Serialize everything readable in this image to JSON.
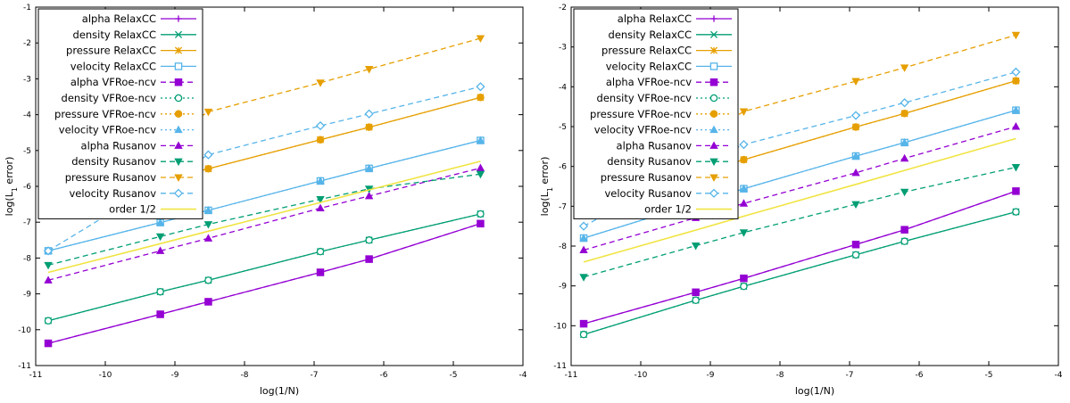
{
  "chart_data": [
    {
      "type": "line",
      "xlabel": "log(1/N)",
      "ylabel": "log(L1 error)",
      "ylabel_main": "log(L",
      "ylabel_sub": "1",
      "ylabel_tail": " error)",
      "xlim": [
        -11,
        -4
      ],
      "ylim": [
        -11,
        -1
      ],
      "xticks": [
        -11,
        -10,
        -9,
        -8,
        -7,
        -6,
        -5,
        -4
      ],
      "yticks": [
        -11,
        -10,
        -9,
        -8,
        -7,
        -6,
        -5,
        -4,
        -3,
        -2,
        -1
      ],
      "legend_position": "top-left",
      "x": [
        -10.82,
        -9.21,
        -8.52,
        -6.91,
        -6.21,
        -4.61
      ],
      "series": [
        {
          "name": "alpha RelaxCC",
          "color": "#9400d3",
          "dash": "solid",
          "marker": "plus",
          "y": [
            -10.38,
            -9.57,
            -9.22,
            -8.4,
            -8.03,
            -7.04
          ]
        },
        {
          "name": "density RelaxCC",
          "color": "#009e73",
          "dash": "solid",
          "marker": "cross",
          "y": [
            -9.75,
            -8.94,
            -8.62,
            -7.82,
            -7.5,
            -6.77
          ]
        },
        {
          "name": "pressure RelaxCC",
          "color": "#e69f00",
          "dash": "solid",
          "marker": "star",
          "y": [
            -6.67,
            -5.85,
            -5.51,
            -4.7,
            -4.35,
            -3.52
          ]
        },
        {
          "name": "velocity RelaxCC",
          "color": "#56b4e9",
          "dash": "solid",
          "marker": "square-open",
          "y": [
            -7.8,
            -7.01,
            -6.67,
            -5.85,
            -5.5,
            -4.72
          ]
        },
        {
          "name": "alpha VFRoe-ncv",
          "color": "#9400d3",
          "dash": "dashed",
          "marker": "square-filled",
          "y": [
            -10.38,
            -9.57,
            -9.22,
            -8.4,
            -8.03,
            -7.04
          ]
        },
        {
          "name": "density VFRoe-ncv",
          "color": "#009e73",
          "dash": "dotted",
          "marker": "circle-open",
          "y": [
            -9.75,
            -8.94,
            -8.62,
            -7.82,
            -7.5,
            -6.77
          ]
        },
        {
          "name": "pressure VFRoe-ncv",
          "color": "#e69f00",
          "dash": "dotted",
          "marker": "circle-filled",
          "y": [
            -6.67,
            -5.85,
            -5.51,
            -4.7,
            -4.35,
            -3.52
          ]
        },
        {
          "name": "velocity VFRoe-ncv",
          "color": "#56b4e9",
          "dash": "dotted",
          "marker": "triangle-up",
          "y": [
            -7.8,
            -7.01,
            -6.67,
            -5.85,
            -5.5,
            -4.72
          ]
        },
        {
          "name": "alpha Rusanov",
          "color": "#9400d3",
          "dash": "dashed",
          "marker": "triangle-up",
          "y": [
            -8.62,
            -7.8,
            -7.45,
            -6.61,
            -6.27,
            -5.49
          ]
        },
        {
          "name": "density Rusanov",
          "color": "#009e73",
          "dash": "dashed",
          "marker": "triangle-down",
          "y": [
            -8.2,
            -7.4,
            -7.06,
            -6.36,
            -6.07,
            -5.66
          ]
        },
        {
          "name": "pressure Rusanov",
          "color": "#e69f00",
          "dash": "dashed",
          "marker": "triangle-down",
          "y": [
            -6.65,
            -4.75,
            -3.92,
            -3.11,
            -2.73,
            -1.87
          ]
        },
        {
          "name": "velocity Rusanov",
          "color": "#56b4e9",
          "dash": "dashed",
          "marker": "diamond-open",
          "y": [
            -7.8,
            -5.9,
            -5.12,
            -4.31,
            -3.98,
            -3.22
          ]
        },
        {
          "name": "order 1/2",
          "color": "#f0e442",
          "dash": "solid",
          "marker": "none",
          "y": [
            -8.4,
            -7.6,
            -7.25,
            -6.45,
            -6.1,
            -5.3
          ]
        }
      ]
    },
    {
      "type": "line",
      "xlabel": "log(1/N)",
      "ylabel": "log(L1 error)",
      "ylabel_main": "log(L",
      "ylabel_sub": "1",
      "ylabel_tail": " error)",
      "xlim": [
        -11,
        -4
      ],
      "ylim": [
        -11,
        -2
      ],
      "xticks": [
        -11,
        -10,
        -9,
        -8,
        -7,
        -6,
        -5,
        -4
      ],
      "yticks": [
        -11,
        -10,
        -9,
        -8,
        -7,
        -6,
        -5,
        -4,
        -3,
        -2
      ],
      "legend_position": "top-left",
      "x": [
        -10.82,
        -9.21,
        -8.52,
        -6.91,
        -6.21,
        -4.61
      ],
      "series": [
        {
          "name": "alpha RelaxCC",
          "color": "#9400d3",
          "dash": "solid",
          "marker": "plus",
          "y": [
            -9.95,
            -9.16,
            -8.81,
            -7.96,
            -7.59,
            -6.62
          ]
        },
        {
          "name": "density RelaxCC",
          "color": "#009e73",
          "dash": "solid",
          "marker": "cross",
          "y": [
            -10.22,
            -9.36,
            -9.01,
            -8.22,
            -7.88,
            -7.14
          ]
        },
        {
          "name": "pressure RelaxCC",
          "color": "#e69f00",
          "dash": "solid",
          "marker": "star",
          "y": [
            -7.08,
            -6.2,
            -5.83,
            -5.01,
            -4.67,
            -3.85
          ]
        },
        {
          "name": "velocity RelaxCC",
          "color": "#56b4e9",
          "dash": "solid",
          "marker": "square-open",
          "y": [
            -7.8,
            -6.93,
            -6.56,
            -5.74,
            -5.4,
            -4.59
          ]
        },
        {
          "name": "alpha VFRoe-ncv",
          "color": "#9400d3",
          "dash": "dashed",
          "marker": "square-filled",
          "y": [
            -9.95,
            -9.16,
            -8.81,
            -7.96,
            -7.59,
            -6.62
          ]
        },
        {
          "name": "density VFRoe-ncv",
          "color": "#009e73",
          "dash": "dotted",
          "marker": "circle-open",
          "y": [
            -10.22,
            -9.36,
            -9.01,
            -8.22,
            -7.88,
            -7.14
          ]
        },
        {
          "name": "pressure VFRoe-ncv",
          "color": "#e69f00",
          "dash": "dotted",
          "marker": "circle-filled",
          "y": [
            -7.08,
            -6.2,
            -5.83,
            -5.01,
            -4.67,
            -3.85
          ]
        },
        {
          "name": "velocity VFRoe-ncv",
          "color": "#56b4e9",
          "dash": "dotted",
          "marker": "triangle-up",
          "y": [
            -7.8,
            -6.93,
            -6.56,
            -5.74,
            -5.4,
            -4.59
          ]
        },
        {
          "name": "alpha Rusanov",
          "color": "#9400d3",
          "dash": "dashed",
          "marker": "triangle-up",
          "y": [
            -8.1,
            -7.29,
            -6.93,
            -6.16,
            -5.8,
            -5.0
          ]
        },
        {
          "name": "density Rusanov",
          "color": "#009e73",
          "dash": "dashed",
          "marker": "triangle-down",
          "y": [
            -8.78,
            -7.99,
            -7.66,
            -6.95,
            -6.64,
            -6.02
          ]
        },
        {
          "name": "pressure Rusanov",
          "color": "#e69f00",
          "dash": "dashed",
          "marker": "triangle-down",
          "y": [
            -6.9,
            -5.35,
            -4.62,
            -3.86,
            -3.52,
            -2.7
          ]
        },
        {
          "name": "velocity Rusanov",
          "color": "#56b4e9",
          "dash": "dashed",
          "marker": "diamond-open",
          "y": [
            -7.5,
            -6.0,
            -5.45,
            -4.72,
            -4.4,
            -3.63
          ]
        },
        {
          "name": "order 1/2",
          "color": "#f0e442",
          "dash": "solid",
          "marker": "none",
          "y": [
            -8.4,
            -7.6,
            -7.25,
            -6.45,
            -6.1,
            -5.3
          ]
        }
      ]
    }
  ]
}
